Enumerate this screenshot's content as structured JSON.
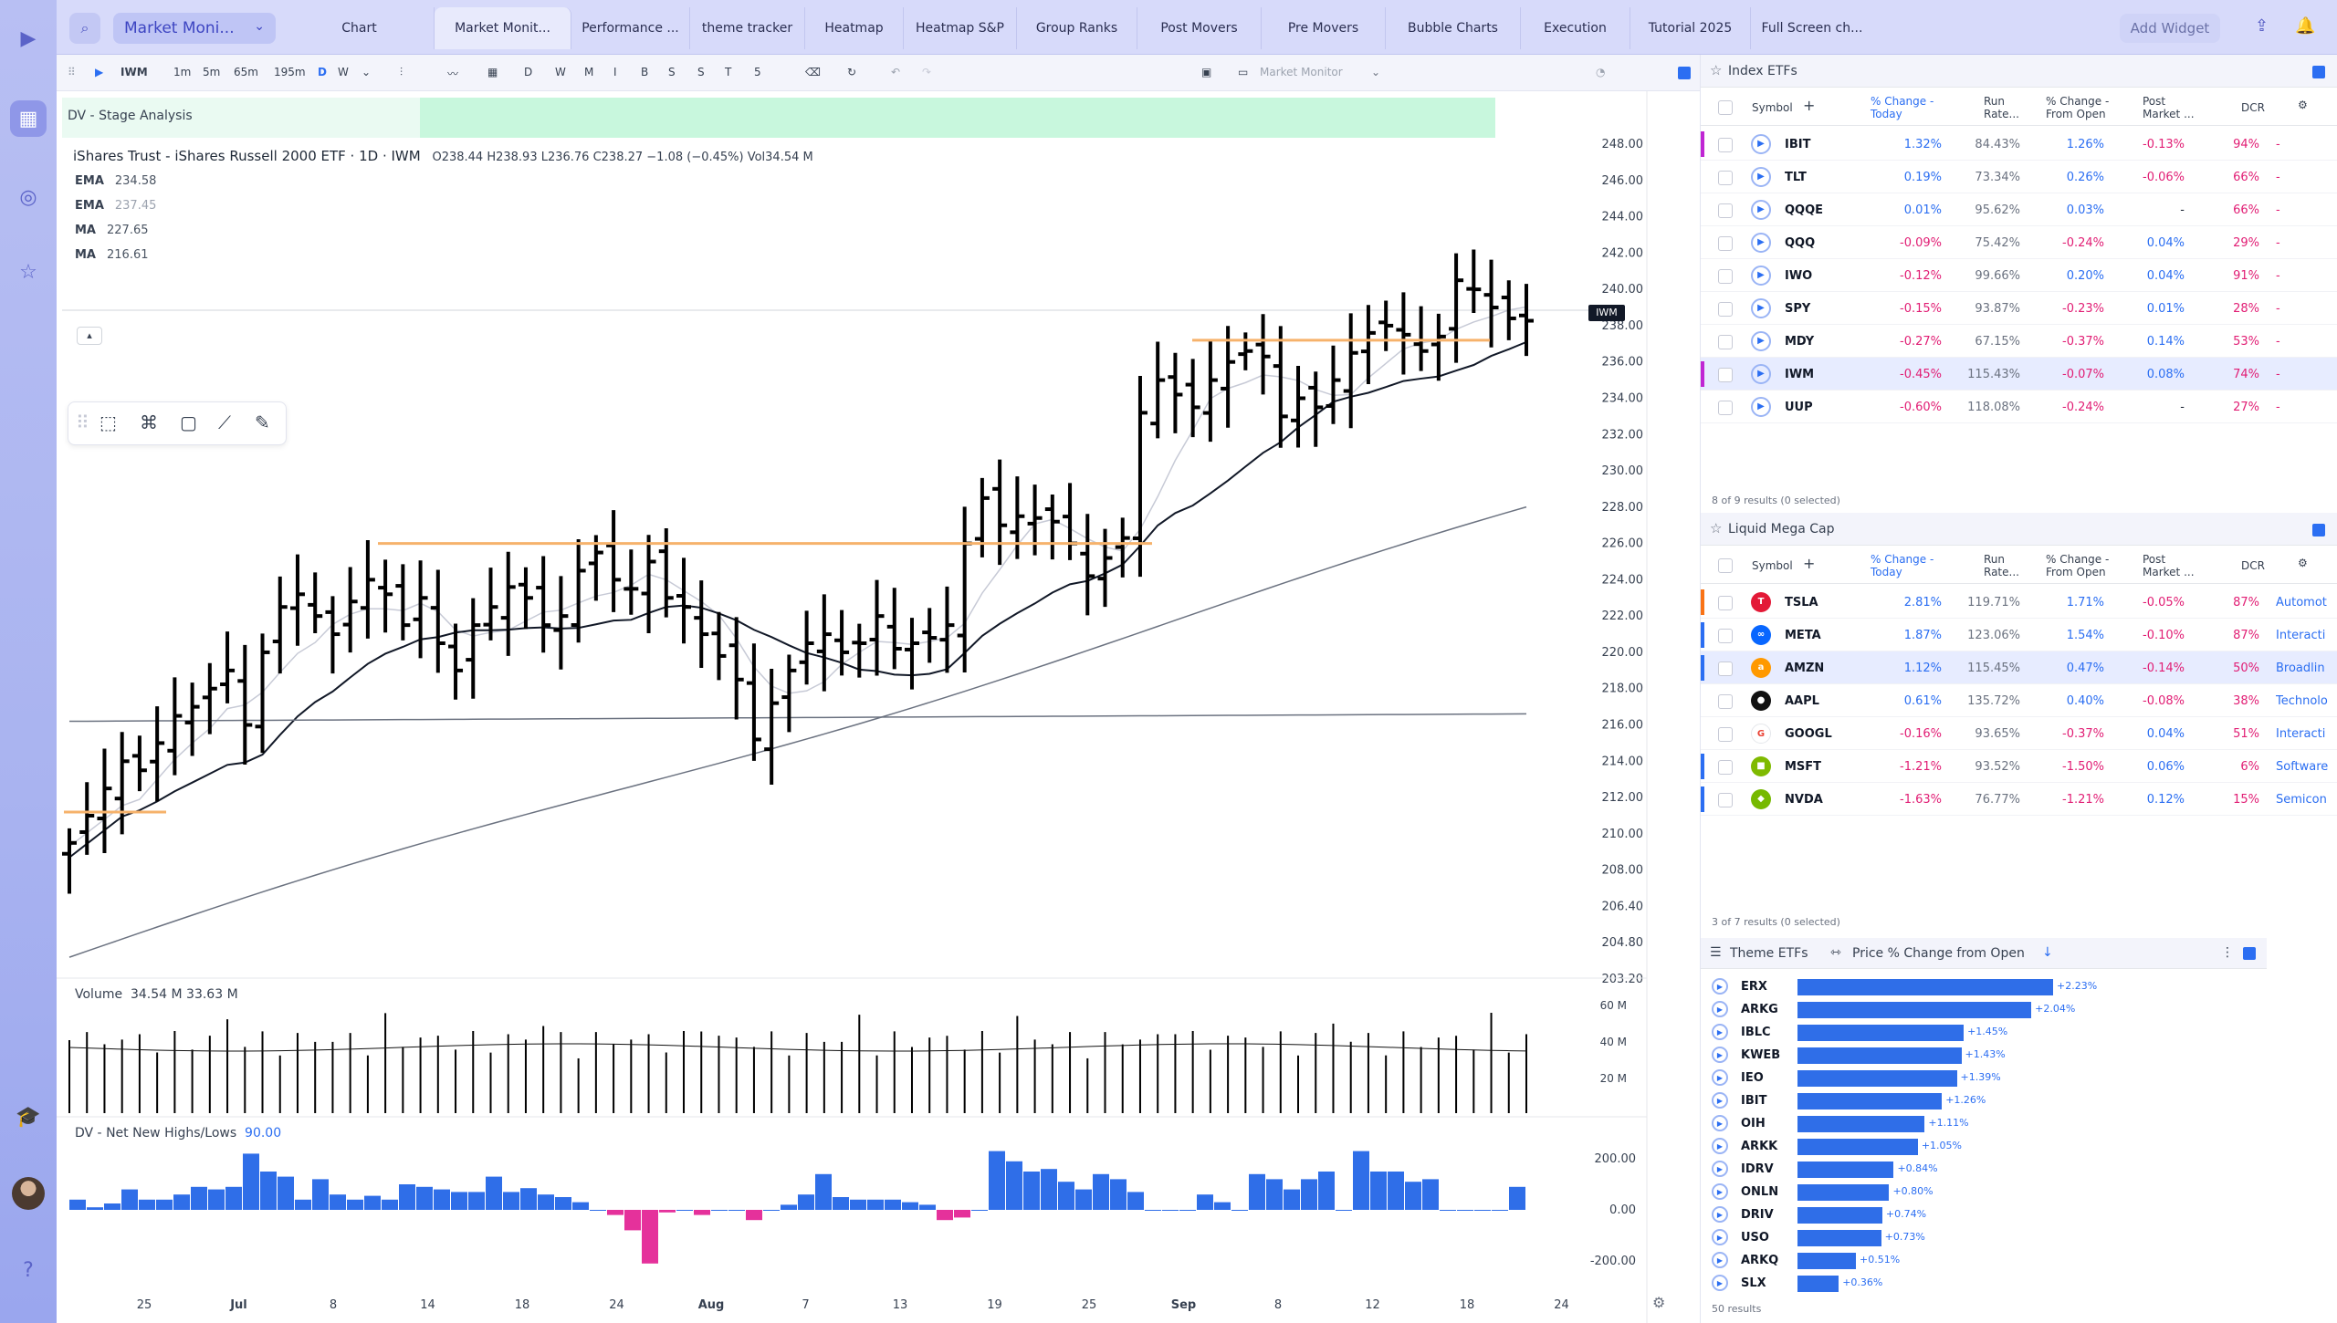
{
  "topbar": {
    "selector": "Market Moni...",
    "tabs": [
      {
        "label": "Chart"
      },
      {
        "label": "Market Monit..."
      },
      {
        "label": "Performance ..."
      },
      {
        "label": "theme tracker"
      },
      {
        "label": "Heatmap"
      },
      {
        "label": "Heatmap S&P"
      },
      {
        "label": "Group Ranks"
      },
      {
        "label": "Post Movers"
      },
      {
        "label": "Pre Movers"
      },
      {
        "label": "Bubble Charts"
      },
      {
        "label": "Execution"
      },
      {
        "label": "Tutorial 2025"
      },
      {
        "label": "Full Screen ch..."
      }
    ],
    "add_widget": "Add Widget"
  },
  "toolbar": {
    "symbol": "IWM",
    "intervals": [
      "1m",
      "5m",
      "65m",
      "195m",
      "D",
      "W"
    ],
    "letters": [
      "D",
      "W",
      "M",
      "I",
      "B",
      "S",
      "S",
      "T",
      "5"
    ],
    "layout_name": "Market Monitor"
  },
  "chart": {
    "stage_label": "DV - Stage Analysis",
    "title": "iShares Trust - iShares Russell 2000 ETF · 1D · IWM",
    "ohlc": "O238.44  H238.93  L236.76  C238.27  −1.08 (−0.45%)  Vol34.54 M",
    "mas": [
      {
        "label": "EMA",
        "value": "234.58"
      },
      {
        "label": "EMA",
        "value": "237.45"
      },
      {
        "label": "MA",
        "value": "227.65"
      },
      {
        "label": "MA",
        "value": "216.61"
      }
    ],
    "price_ticks": [
      "248.00",
      "246.00",
      "244.00",
      "242.00",
      "240.00",
      "238.00",
      "236.00",
      "234.00",
      "232.00",
      "230.00",
      "228.00",
      "226.00",
      "224.00",
      "222.00",
      "220.00",
      "218.00",
      "216.00",
      "214.00",
      "212.00",
      "210.00",
      "208.00",
      "206.40",
      "204.80",
      "203.20"
    ],
    "current_tag": "IWM",
    "volume_label": "Volume",
    "volume_values": "34.54 M  33.63 M",
    "volume_ticks": [
      "60 M",
      "40 M",
      "20 M"
    ],
    "nnh_label": "DV - Net New Highs/Lows",
    "nnh_value": "90.00",
    "nnh_ticks": [
      "200.00",
      "0.00",
      "-200.00"
    ],
    "date_ticks": [
      "25",
      "Jul",
      "8",
      "14",
      "18",
      "24",
      "Aug",
      "7",
      "13",
      "19",
      "25",
      "Sep",
      "8",
      "12",
      "18",
      "24"
    ]
  },
  "index_etfs": {
    "title": "Index ETFs",
    "columns": [
      "Symbol",
      "% Change - Today",
      "Run Rate...",
      "% Change - From Open",
      "Post Market ...",
      "DCR"
    ],
    "rows": [
      {
        "symbol": "IBIT",
        "chg": "1.32%",
        "run": "84.43%",
        "open": "1.26%",
        "post": "-0.13%",
        "dcr": "94%",
        "extra": "-"
      },
      {
        "symbol": "TLT",
        "chg": "0.19%",
        "run": "73.34%",
        "open": "0.26%",
        "post": "-0.06%",
        "dcr": "66%",
        "extra": "-"
      },
      {
        "symbol": "QQQE",
        "chg": "0.01%",
        "run": "95.62%",
        "open": "0.03%",
        "post": "-",
        "dcr": "66%",
        "extra": "-"
      },
      {
        "symbol": "QQQ",
        "chg": "-0.09%",
        "run": "75.42%",
        "open": "-0.24%",
        "post": "0.04%",
        "dcr": "29%",
        "extra": "-"
      },
      {
        "symbol": "IWO",
        "chg": "-0.12%",
        "run": "99.66%",
        "open": "0.20%",
        "post": "0.04%",
        "dcr": "91%",
        "extra": "-"
      },
      {
        "symbol": "SPY",
        "chg": "-0.15%",
        "run": "93.87%",
        "open": "-0.23%",
        "post": "0.01%",
        "dcr": "28%",
        "extra": "-"
      },
      {
        "symbol": "MDY",
        "chg": "-0.27%",
        "run": "67.15%",
        "open": "-0.37%",
        "post": "0.14%",
        "dcr": "53%",
        "extra": "-"
      },
      {
        "symbol": "IWM",
        "chg": "-0.45%",
        "run": "115.43%",
        "open": "-0.07%",
        "post": "0.08%",
        "dcr": "74%",
        "extra": "-"
      },
      {
        "symbol": "UUP",
        "chg": "-0.60%",
        "run": "118.08%",
        "open": "-0.24%",
        "post": "-",
        "dcr": "27%",
        "extra": "-"
      }
    ],
    "footer": "8 of 9 results (0 selected)"
  },
  "mega_cap": {
    "title": "Liquid Mega Cap",
    "columns": [
      "Symbol",
      "% Change - Today",
      "Run Rate...",
      "% Change - From Open",
      "Post Market ...",
      "DCR"
    ],
    "rows": [
      {
        "symbol": "TSLA",
        "chg": "2.81%",
        "run": "119.71%",
        "open": "1.71%",
        "post": "-0.05%",
        "dcr": "87%",
        "extra": "Automot"
      },
      {
        "symbol": "META",
        "chg": "1.87%",
        "run": "123.06%",
        "open": "1.54%",
        "post": "-0.10%",
        "dcr": "87%",
        "extra": "Interacti"
      },
      {
        "symbol": "AMZN",
        "chg": "1.12%",
        "run": "115.45%",
        "open": "0.47%",
        "post": "-0.14%",
        "dcr": "50%",
        "extra": "Broadlin"
      },
      {
        "symbol": "AAPL",
        "chg": "0.61%",
        "run": "135.72%",
        "open": "0.40%",
        "post": "-0.08%",
        "dcr": "38%",
        "extra": "Technolo"
      },
      {
        "symbol": "GOOGL",
        "chg": "-0.16%",
        "run": "93.65%",
        "open": "-0.37%",
        "post": "0.04%",
        "dcr": "51%",
        "extra": "Interacti"
      },
      {
        "symbol": "MSFT",
        "chg": "-1.21%",
        "run": "93.52%",
        "open": "-1.50%",
        "post": "0.06%",
        "dcr": "6%",
        "extra": "Software"
      },
      {
        "symbol": "NVDA",
        "chg": "-1.63%",
        "run": "76.77%",
        "open": "-1.21%",
        "post": "0.12%",
        "dcr": "15%",
        "extra": "Semicon"
      }
    ],
    "footer": "3 of 7 results (0 selected)"
  },
  "theme_etfs": {
    "title": "Theme ETFs",
    "metric": "Price % Change from Open",
    "rows": [
      {
        "symbol": "ERX",
        "value": 2.23,
        "label": "+2.23%"
      },
      {
        "symbol": "ARKG",
        "value": 2.04,
        "label": "+2.04%"
      },
      {
        "symbol": "IBLC",
        "value": 1.45,
        "label": "+1.45%"
      },
      {
        "symbol": "KWEB",
        "value": 1.43,
        "label": "+1.43%"
      },
      {
        "symbol": "IEO",
        "value": 1.39,
        "label": "+1.39%"
      },
      {
        "symbol": "IBIT",
        "value": 1.26,
        "label": "+1.26%"
      },
      {
        "symbol": "OIH",
        "value": 1.11,
        "label": "+1.11%"
      },
      {
        "symbol": "ARKK",
        "value": 1.05,
        "label": "+1.05%"
      },
      {
        "symbol": "IDRV",
        "value": 0.84,
        "label": "+0.84%"
      },
      {
        "symbol": "ONLN",
        "value": 0.8,
        "label": "+0.80%"
      },
      {
        "symbol": "DRIV",
        "value": 0.74,
        "label": "+0.74%"
      },
      {
        "symbol": "USO",
        "value": 0.73,
        "label": "+0.73%"
      },
      {
        "symbol": "ARKQ",
        "value": 0.51,
        "label": "+0.51%"
      },
      {
        "symbol": "SLX",
        "value": 0.36,
        "label": "+0.36%"
      }
    ],
    "footer": "50 results"
  }
}
